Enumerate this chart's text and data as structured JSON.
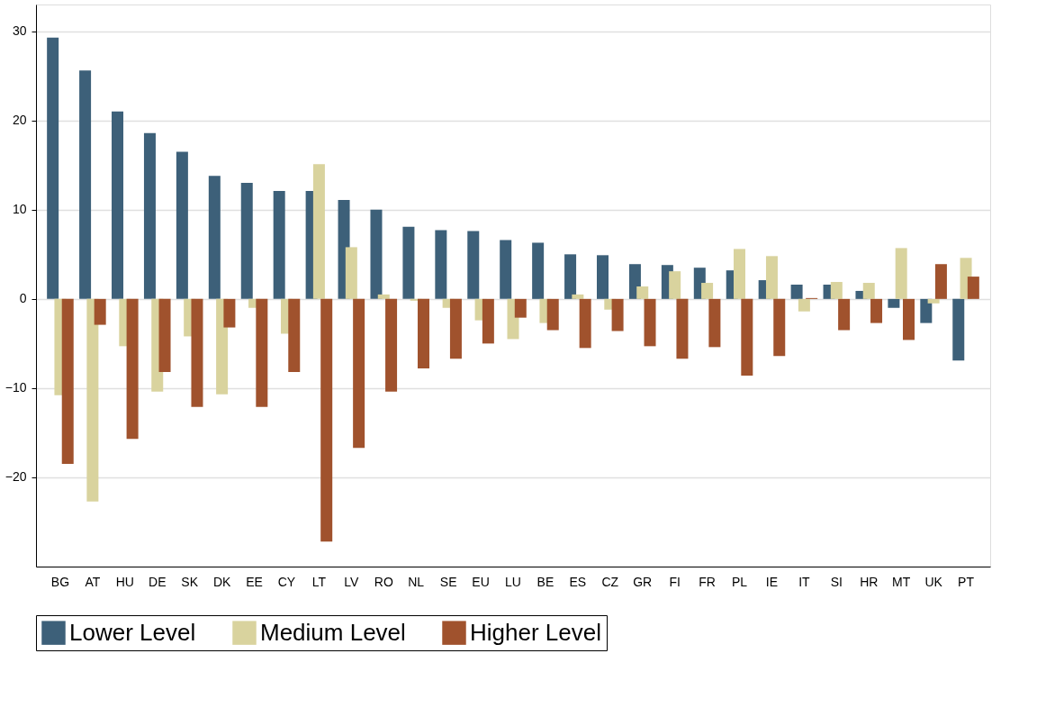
{
  "chart_data": {
    "type": "bar",
    "categories": [
      "BG",
      "AT",
      "HU",
      "DE",
      "SK",
      "DK",
      "EE",
      "CY",
      "LT",
      "LV",
      "RO",
      "NL",
      "SE",
      "EU",
      "LU",
      "BE",
      "ES",
      "CZ",
      "GR",
      "FI",
      "FR",
      "PL",
      "IE",
      "IT",
      "SI",
      "HR",
      "MT",
      "UK",
      "PT"
    ],
    "series": [
      {
        "name": "Lower Level",
        "color": "#3d6079",
        "values": [
          29.3,
          25.6,
          21.0,
          18.6,
          16.5,
          13.8,
          13.0,
          12.1,
          12.1,
          11.1,
          10.0,
          8.1,
          7.7,
          7.6,
          6.6,
          6.3,
          5.0,
          4.9,
          3.9,
          3.8,
          3.5,
          3.2,
          2.1,
          1.6,
          1.6,
          0.9,
          -1.0,
          -2.7,
          -6.9
        ]
      },
      {
        "name": "Medium Level",
        "color": "#d9d39e",
        "values": [
          -10.8,
          -22.7,
          -5.3,
          -10.4,
          -4.2,
          -10.7,
          -1.0,
          -3.9,
          15.1,
          5.8,
          0.5,
          -0.2,
          -1.0,
          -2.4,
          -4.5,
          -2.7,
          0.5,
          -1.2,
          1.4,
          3.1,
          1.8,
          5.6,
          4.8,
          -1.4,
          1.9,
          1.8,
          5.7,
          -0.5,
          4.6
        ]
      },
      {
        "name": "Higher Level",
        "color": "#a0522d",
        "values": [
          -18.5,
          -2.9,
          -15.7,
          -8.2,
          -12.1,
          -3.2,
          -12.1,
          -8.2,
          -27.2,
          -16.7,
          -10.4,
          -7.8,
          -6.7,
          -5.0,
          -2.1,
          -3.5,
          -5.5,
          -3.6,
          -5.3,
          -6.7,
          -5.4,
          -8.6,
          -6.4,
          0.1,
          -3.5,
          -2.7,
          -4.6,
          3.9,
          2.5
        ]
      }
    ],
    "ylim": [
      -30,
      33
    ],
    "yticks": [
      -20,
      -10,
      0,
      10,
      20,
      30
    ],
    "grid": "y",
    "legend": "bottom"
  }
}
